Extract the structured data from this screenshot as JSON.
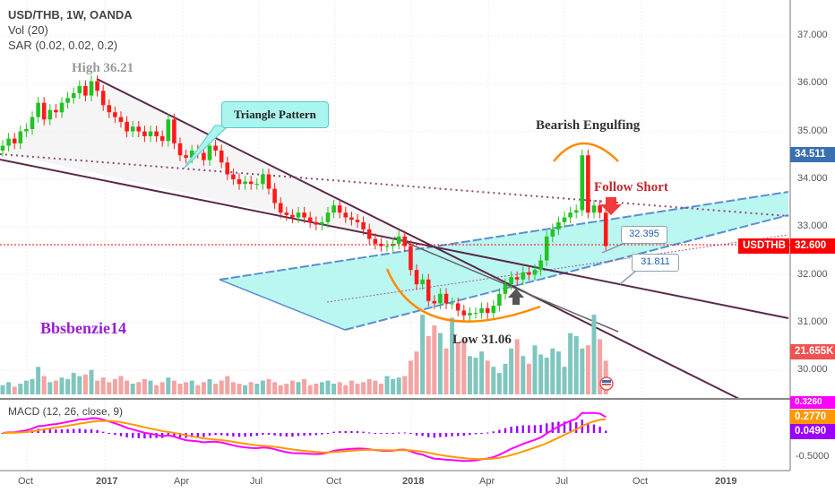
{
  "legend": {
    "title": "USD/THB, 1W, OANDA",
    "vol": "Vol (20)",
    "sar": "SAR (0.02, 0.02, 0.2)",
    "macd": "MACD (12, 26, close, 9)"
  },
  "annotations": {
    "high": "High 36.21",
    "low": "Low 31.06",
    "triangle": "Triangle Pattern",
    "bearish": "Bearish Engulfing",
    "follow": "Follow Short",
    "author": "Bbsbenzie14",
    "callout1": "32.395",
    "callout2": "31.811"
  },
  "price_tags": {
    "high_tag": "34.511",
    "symbol": "USDTHB",
    "last": "32.600",
    "volume": "21.655K",
    "macd_hi": "0.3260",
    "signal": "0.2770",
    "hist": "0.0490"
  },
  "colors": {
    "up": "#22c322",
    "down": "#ff1a1a",
    "vol_up": "#7fc6bf",
    "vol_down": "#f5a3a3",
    "macd": "#ff00ff",
    "signal": "#ff9800",
    "hist": "#9b00ff",
    "channel": "#aaf5ee",
    "last_price": "#ff0000",
    "high_tag": "#3a6fb0"
  },
  "chart_data": {
    "type": "candlestick",
    "interval": "1W",
    "price_axis_ticks": [
      "37.000",
      "36.000",
      "35.000",
      "34.000",
      "33.000",
      "32.000",
      "31.000",
      "30.000"
    ],
    "macd_axis_ticks": [
      "-0.5000"
    ],
    "time_axis_ticks": [
      "Oct",
      "2017",
      "Apr",
      "Jul",
      "Oct",
      "2018",
      "Apr",
      "Jul",
      "Oct",
      "2019"
    ],
    "close": [
      34.7,
      34.85,
      34.75,
      35.0,
      35.05,
      35.3,
      35.6,
      35.25,
      35.45,
      35.4,
      35.6,
      35.7,
      35.8,
      35.95,
      35.75,
      36.05,
      35.85,
      35.55,
      35.4,
      35.3,
      35.2,
      35.0,
      35.1,
      35.0,
      34.9,
      35.0,
      34.9,
      34.8,
      35.25,
      34.75,
      34.5,
      34.45,
      34.6,
      34.55,
      34.4,
      34.7,
      34.6,
      34.35,
      34.1,
      34.0,
      33.9,
      33.95,
      33.9,
      33.9,
      34.1,
      33.8,
      33.5,
      33.3,
      33.25,
      33.2,
      33.3,
      33.2,
      33.1,
      33.05,
      33.1,
      33.3,
      33.45,
      33.3,
      33.2,
      33.15,
      33.1,
      32.95,
      32.75,
      32.65,
      32.6,
      32.6,
      32.65,
      32.8,
      32.6,
      32.1,
      31.8,
      31.9,
      31.45,
      31.4,
      31.6,
      31.4,
      31.4,
      31.25,
      31.15,
      31.2,
      31.2,
      31.3,
      31.2,
      31.35,
      31.6,
      31.8,
      31.95,
      31.9,
      32.05,
      32.0,
      32.1,
      32.3,
      32.8,
      32.95,
      33.1,
      33.2,
      33.3,
      33.35,
      34.5,
      33.3,
      33.45,
      33.3,
      32.6
    ],
    "volume_k": [
      6,
      8,
      5,
      7,
      9,
      10,
      18,
      12,
      8,
      9,
      11,
      10,
      14,
      12,
      13,
      16,
      9,
      11,
      8,
      10,
      12,
      9,
      7,
      8,
      10,
      9,
      6,
      8,
      11,
      9,
      7,
      8,
      9,
      6,
      8,
      10,
      7,
      9,
      12,
      8,
      7,
      6,
      8,
      7,
      9,
      10,
      8,
      6,
      7,
      9,
      8,
      10,
      6,
      7,
      8,
      9,
      7,
      8,
      6,
      9,
      7,
      8,
      10,
      9,
      7,
      12,
      10,
      11,
      12,
      22,
      28,
      52,
      38,
      45,
      40,
      30,
      50,
      34,
      35,
      25,
      24,
      28,
      22,
      18,
      14,
      20,
      30,
      36,
      25,
      20,
      32,
      26,
      24,
      30,
      28,
      18,
      40,
      38,
      30,
      32,
      52,
      36,
      22
    ]
  }
}
